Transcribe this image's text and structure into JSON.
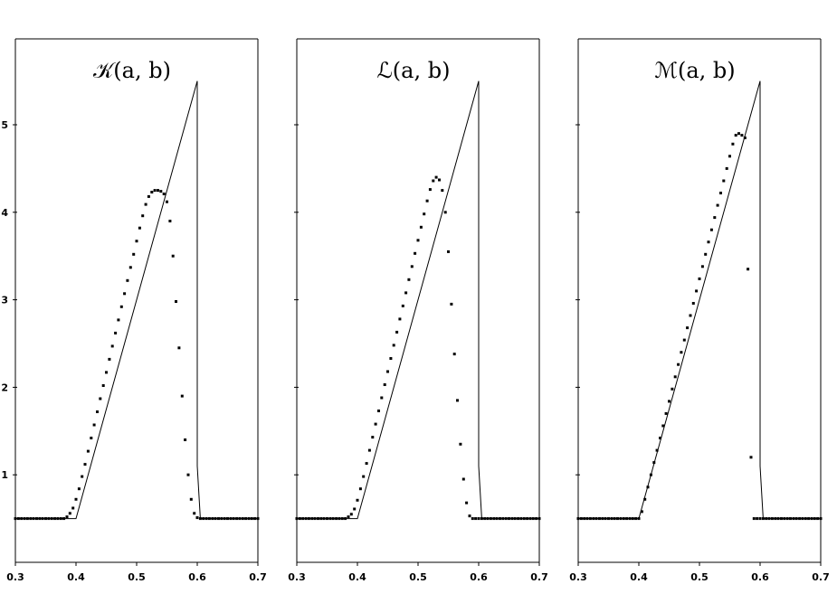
{
  "chart_data": [
    {
      "type": "line",
      "title": "𝒦(a, b)",
      "xlim": [
        0.3,
        0.7
      ],
      "ylim": [
        0,
        6
      ],
      "x_ticks": [
        0.3,
        0.4,
        0.5,
        0.6,
        0.7
      ],
      "x_tick_labels": [
        "0.3",
        "0.4",
        "0.5",
        "0.6",
        "0.7"
      ],
      "y_ticks": [
        1,
        2,
        3,
        4,
        5
      ],
      "y_tick_labels": [
        "1",
        "2",
        "3",
        "4",
        "5"
      ],
      "grid": false,
      "series": [
        {
          "style": "line",
          "x": [
            0.3,
            0.4,
            0.6,
            0.6,
            0.605,
            0.7
          ],
          "y": [
            0.5,
            0.5,
            5.5,
            1.1,
            0.5,
            0.5
          ]
        },
        {
          "style": "points",
          "x": [
            0.3,
            0.305,
            0.31,
            0.315,
            0.32,
            0.325,
            0.33,
            0.335,
            0.34,
            0.345,
            0.35,
            0.355,
            0.36,
            0.365,
            0.37,
            0.375,
            0.38,
            0.385,
            0.39,
            0.395,
            0.4,
            0.405,
            0.41,
            0.415,
            0.42,
            0.425,
            0.43,
            0.435,
            0.44,
            0.445,
            0.45,
            0.455,
            0.46,
            0.465,
            0.47,
            0.475,
            0.48,
            0.485,
            0.49,
            0.495,
            0.5,
            0.505,
            0.51,
            0.515,
            0.52,
            0.525,
            0.53,
            0.535,
            0.54,
            0.545,
            0.55,
            0.555,
            0.56,
            0.565,
            0.57,
            0.575,
            0.58,
            0.585,
            0.59,
            0.595,
            0.6,
            0.605,
            0.61,
            0.615,
            0.62,
            0.625,
            0.63,
            0.635,
            0.64,
            0.645,
            0.65,
            0.655,
            0.66,
            0.665,
            0.67,
            0.675,
            0.68,
            0.685,
            0.69,
            0.695,
            0.7
          ],
          "y": [
            0.5,
            0.5,
            0.5,
            0.5,
            0.5,
            0.5,
            0.5,
            0.5,
            0.5,
            0.5,
            0.5,
            0.5,
            0.5,
            0.5,
            0.5,
            0.5,
            0.5,
            0.52,
            0.56,
            0.62,
            0.72,
            0.84,
            0.98,
            1.12,
            1.27,
            1.42,
            1.57,
            1.72,
            1.87,
            2.02,
            2.17,
            2.32,
            2.47,
            2.62,
            2.77,
            2.92,
            3.07,
            3.22,
            3.37,
            3.52,
            3.67,
            3.82,
            3.96,
            4.09,
            4.18,
            4.23,
            4.25,
            4.25,
            4.24,
            4.21,
            4.12,
            3.9,
            3.5,
            2.98,
            2.45,
            1.9,
            1.4,
            1.0,
            0.72,
            0.56,
            0.51,
            0.5,
            0.5,
            0.5,
            0.5,
            0.5,
            0.5,
            0.5,
            0.5,
            0.5,
            0.5,
            0.5,
            0.5,
            0.5,
            0.5,
            0.5,
            0.5,
            0.5,
            0.5,
            0.5,
            0.5
          ]
        }
      ]
    },
    {
      "type": "line",
      "title": "ℒ(a, b)",
      "xlim": [
        0.3,
        0.7
      ],
      "ylim": [
        0,
        6
      ],
      "x_ticks": [
        0.3,
        0.4,
        0.5,
        0.6,
        0.7
      ],
      "x_tick_labels": [
        "0.3",
        "0.4",
        "0.5",
        "0.6",
        "0.7"
      ],
      "y_ticks": [
        1,
        2,
        3,
        4,
        5
      ],
      "y_tick_labels": [
        "",
        "",
        "",
        "",
        ""
      ],
      "grid": false,
      "series": [
        {
          "style": "line",
          "x": [
            0.3,
            0.4,
            0.6,
            0.6,
            0.605,
            0.7
          ],
          "y": [
            0.5,
            0.5,
            5.5,
            1.1,
            0.5,
            0.5
          ]
        },
        {
          "style": "points",
          "x": [
            0.3,
            0.305,
            0.31,
            0.315,
            0.32,
            0.325,
            0.33,
            0.335,
            0.34,
            0.345,
            0.35,
            0.355,
            0.36,
            0.365,
            0.37,
            0.375,
            0.38,
            0.385,
            0.39,
            0.395,
            0.4,
            0.405,
            0.41,
            0.415,
            0.42,
            0.425,
            0.43,
            0.435,
            0.44,
            0.445,
            0.45,
            0.455,
            0.46,
            0.465,
            0.47,
            0.475,
            0.48,
            0.485,
            0.49,
            0.495,
            0.5,
            0.505,
            0.51,
            0.515,
            0.52,
            0.525,
            0.53,
            0.535,
            0.54,
            0.545,
            0.55,
            0.555,
            0.56,
            0.565,
            0.57,
            0.575,
            0.58,
            0.585,
            0.59,
            0.595,
            0.6,
            0.605,
            0.61,
            0.615,
            0.62,
            0.625,
            0.63,
            0.635,
            0.64,
            0.645,
            0.65,
            0.655,
            0.66,
            0.665,
            0.67,
            0.675,
            0.68,
            0.685,
            0.69,
            0.695,
            0.7
          ],
          "y": [
            0.5,
            0.5,
            0.5,
            0.5,
            0.5,
            0.5,
            0.5,
            0.5,
            0.5,
            0.5,
            0.5,
            0.5,
            0.5,
            0.5,
            0.5,
            0.5,
            0.5,
            0.52,
            0.55,
            0.61,
            0.71,
            0.84,
            0.98,
            1.13,
            1.28,
            1.43,
            1.58,
            1.73,
            1.88,
            2.03,
            2.18,
            2.33,
            2.48,
            2.63,
            2.78,
            2.93,
            3.08,
            3.23,
            3.38,
            3.53,
            3.68,
            3.83,
            3.98,
            4.13,
            4.26,
            4.36,
            4.4,
            4.37,
            4.25,
            4.0,
            3.55,
            2.95,
            2.38,
            1.85,
            1.35,
            0.95,
            0.68,
            0.53,
            0.5,
            0.5,
            0.5,
            0.5,
            0.5,
            0.5,
            0.5,
            0.5,
            0.5,
            0.5,
            0.5,
            0.5,
            0.5,
            0.5,
            0.5,
            0.5,
            0.5,
            0.5,
            0.5,
            0.5,
            0.5,
            0.5,
            0.5
          ]
        }
      ]
    },
    {
      "type": "line",
      "title": "ℳ(a, b)",
      "xlim": [
        0.3,
        0.7
      ],
      "ylim": [
        0,
        6
      ],
      "x_ticks": [
        0.3,
        0.4,
        0.5,
        0.6,
        0.7
      ],
      "x_tick_labels": [
        "0.3",
        "0.4",
        "0.5",
        "0.6",
        "0.7"
      ],
      "y_ticks": [
        1,
        2,
        3,
        4,
        5
      ],
      "y_tick_labels": [
        "",
        "",
        "",
        "",
        ""
      ],
      "grid": false,
      "series": [
        {
          "style": "line",
          "x": [
            0.3,
            0.4,
            0.6,
            0.6,
            0.605,
            0.7
          ],
          "y": [
            0.5,
            0.5,
            5.5,
            1.1,
            0.5,
            0.5
          ]
        },
        {
          "style": "points",
          "x": [
            0.3,
            0.305,
            0.31,
            0.315,
            0.32,
            0.325,
            0.33,
            0.335,
            0.34,
            0.345,
            0.35,
            0.355,
            0.36,
            0.365,
            0.37,
            0.375,
            0.38,
            0.385,
            0.39,
            0.395,
            0.4,
            0.405,
            0.41,
            0.415,
            0.42,
            0.425,
            0.43,
            0.435,
            0.44,
            0.445,
            0.45,
            0.455,
            0.46,
            0.465,
            0.47,
            0.475,
            0.48,
            0.485,
            0.49,
            0.495,
            0.5,
            0.505,
            0.51,
            0.515,
            0.52,
            0.525,
            0.53,
            0.535,
            0.54,
            0.545,
            0.55,
            0.555,
            0.56,
            0.565,
            0.57,
            0.575,
            0.58,
            0.585,
            0.59,
            0.595,
            0.6,
            0.605,
            0.61,
            0.615,
            0.62,
            0.625,
            0.63,
            0.635,
            0.64,
            0.645,
            0.65,
            0.655,
            0.66,
            0.665,
            0.67,
            0.675,
            0.68,
            0.685,
            0.69,
            0.695,
            0.7
          ],
          "y": [
            0.5,
            0.5,
            0.5,
            0.5,
            0.5,
            0.5,
            0.5,
            0.5,
            0.5,
            0.5,
            0.5,
            0.5,
            0.5,
            0.5,
            0.5,
            0.5,
            0.5,
            0.5,
            0.5,
            0.5,
            0.5,
            0.58,
            0.72,
            0.86,
            1.0,
            1.14,
            1.28,
            1.42,
            1.56,
            1.7,
            1.84,
            1.98,
            2.12,
            2.26,
            2.4,
            2.54,
            2.68,
            2.82,
            2.96,
            3.1,
            3.24,
            3.38,
            3.52,
            3.66,
            3.8,
            3.94,
            4.08,
            4.22,
            4.36,
            4.5,
            4.64,
            4.78,
            4.88,
            4.9,
            4.88,
            4.85,
            3.35,
            1.2,
            0.5,
            0.5,
            0.5,
            0.5,
            0.5,
            0.5,
            0.5,
            0.5,
            0.5,
            0.5,
            0.5,
            0.5,
            0.5,
            0.5,
            0.5,
            0.5,
            0.5,
            0.5,
            0.5,
            0.5,
            0.5,
            0.5,
            0.5
          ]
        }
      ]
    }
  ]
}
